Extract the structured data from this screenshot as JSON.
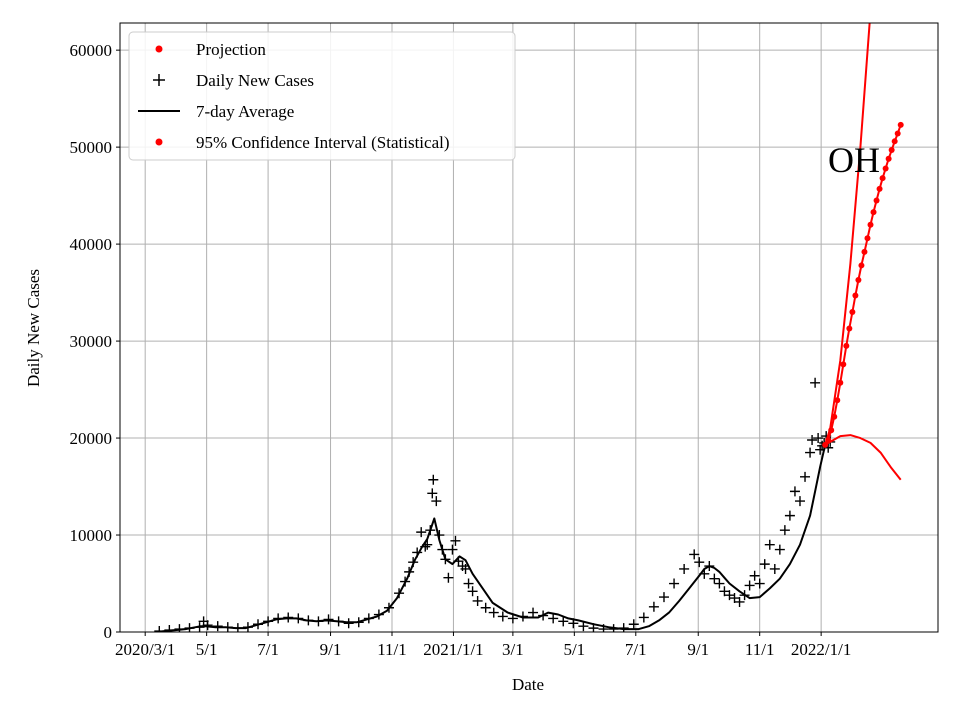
{
  "chart_data": {
    "type": "line",
    "title": "",
    "annotation": "OH",
    "xlabel": "Date",
    "ylabel": "Daily New Cases",
    "ylim": [
      0,
      62800
    ],
    "xlim": [
      -25,
      787
    ],
    "grid": true,
    "legend_position": "top-left",
    "x_unit": "days since 2020-03-01",
    "x_ticks": [
      {
        "x": 0,
        "label": "2020/3/1"
      },
      {
        "x": 61,
        "label": "5/1"
      },
      {
        "x": 122,
        "label": "7/1"
      },
      {
        "x": 184,
        "label": "9/1"
      },
      {
        "x": 245,
        "label": "11/1"
      },
      {
        "x": 306,
        "label": "2021/1/1"
      },
      {
        "x": 365,
        "label": "3/1"
      },
      {
        "x": 426,
        "label": "5/1"
      },
      {
        "x": 487,
        "label": "7/1"
      },
      {
        "x": 549,
        "label": "9/1"
      },
      {
        "x": 610,
        "label": "11/1"
      },
      {
        "x": 671,
        "label": "2022/1/1"
      }
    ],
    "y_ticks": [
      {
        "y": 0,
        "label": "0"
      },
      {
        "y": 10000,
        "label": "10000"
      },
      {
        "y": 20000,
        "label": "20000"
      },
      {
        "y": 30000,
        "label": "30000"
      },
      {
        "y": 40000,
        "label": "40000"
      },
      {
        "y": 50000,
        "label": "50000"
      },
      {
        "y": 60000,
        "label": "60000"
      }
    ],
    "legend": [
      {
        "label": "Projection",
        "marker": "dot",
        "color": "#ff0000"
      },
      {
        "label": "Daily New Cases",
        "marker": "plus",
        "color": "#000000"
      },
      {
        "label": "7-day Average",
        "marker": "line",
        "color": "#000000"
      },
      {
        "label": "95% Confidence Interval (Statistical)",
        "marker": "dot",
        "color": "#ff0000"
      }
    ],
    "series": [
      {
        "name": "7-day Average",
        "style": "line",
        "color": "#000000",
        "x": [
          13,
          20,
          30,
          40,
          50,
          55,
          60,
          70,
          80,
          90,
          100,
          110,
          120,
          130,
          140,
          150,
          160,
          170,
          180,
          190,
          200,
          210,
          220,
          230,
          240,
          250,
          260,
          268,
          275,
          280,
          283,
          287,
          292,
          298,
          305,
          312,
          318,
          325,
          335,
          345,
          360,
          375,
          390,
          400,
          410,
          420,
          430,
          445,
          460,
          475,
          490,
          500,
          510,
          520,
          530,
          540,
          550,
          555,
          560,
          565,
          570,
          575,
          580,
          590,
          600,
          610,
          620,
          630,
          640,
          650,
          660,
          665,
          670,
          675
        ],
        "y": [
          0,
          100,
          200,
          300,
          500,
          600,
          600,
          500,
          500,
          400,
          400,
          700,
          1000,
          1300,
          1400,
          1400,
          1200,
          1100,
          1200,
          1100,
          1000,
          1000,
          1300,
          1600,
          2200,
          3500,
          5500,
          7500,
          8800,
          9600,
          10500,
          11700,
          9500,
          7500,
          7000,
          7800,
          7400,
          6000,
          4500,
          3000,
          2000,
          1500,
          1500,
          2000,
          1800,
          1400,
          1200,
          800,
          500,
          300,
          300,
          600,
          1200,
          2000,
          3200,
          4500,
          5800,
          6500,
          6800,
          6600,
          6200,
          5600,
          5000,
          4200,
          3500,
          3600,
          4500,
          5500,
          7000,
          9000,
          12000,
          14500,
          17000,
          19300
        ]
      },
      {
        "name": "Daily New Cases",
        "style": "plus",
        "color": "#000000",
        "x": [
          14,
          24,
          34,
          44,
          54,
          58,
          62,
          72,
          82,
          92,
          102,
          112,
          122,
          132,
          142,
          152,
          162,
          172,
          182,
          192,
          202,
          212,
          222,
          232,
          242,
          252,
          258,
          262,
          266,
          270,
          274,
          278,
          280,
          283,
          285,
          286,
          289,
          292,
          295,
          298,
          301,
          305,
          308,
          311,
          315,
          318,
          321,
          325,
          330,
          338,
          346,
          355,
          365,
          375,
          385,
          395,
          405,
          415,
          425,
          435,
          445,
          455,
          465,
          475,
          485,
          495,
          505,
          515,
          525,
          535,
          545,
          550,
          555,
          560,
          565,
          570,
          575,
          580,
          585,
          590,
          595,
          600,
          605,
          610,
          615,
          620,
          625,
          630,
          635,
          640,
          645,
          650,
          655,
          660,
          662,
          665,
          668,
          670,
          672,
          674,
          676,
          678,
          680
        ],
        "y": [
          100,
          200,
          300,
          400,
          500,
          1100,
          700,
          600,
          500,
          400,
          500,
          800,
          1100,
          1400,
          1500,
          1400,
          1200,
          1100,
          1300,
          1100,
          900,
          1000,
          1400,
          1800,
          2500,
          4000,
          5200,
          6200,
          7200,
          8200,
          10300,
          8800,
          9000,
          10500,
          14300,
          15700,
          13500,
          10000,
          8500,
          7500,
          5600,
          8500,
          9400,
          7300,
          6800,
          6500,
          5000,
          4200,
          3200,
          2500,
          2000,
          1600,
          1400,
          1600,
          2000,
          1700,
          1400,
          1100,
          900,
          600,
          400,
          300,
          300,
          400,
          800,
          1500,
          2600,
          3600,
          5000,
          6500,
          8000,
          7200,
          6000,
          6800,
          5500,
          5000,
          4200,
          3800,
          3500,
          3100,
          3800,
          4800,
          5800,
          5000,
          7000,
          9000,
          6500,
          8500,
          10500,
          12000,
          14500,
          13500,
          16000,
          18500,
          19800,
          25700,
          20000,
          18800,
          19200,
          19500,
          20200,
          19000,
          19600
        ]
      },
      {
        "name": "Projection",
        "style": "line",
        "color": "#ff0000",
        "x": [
          675,
          680,
          690,
          700,
          710,
          720
        ],
        "y": [
          19300,
          21000,
          28000,
          38000,
          50000,
          64000
        ]
      },
      {
        "name": "Projection (lower)",
        "style": "line",
        "color": "#ff0000",
        "x": [
          675,
          680,
          690,
          700,
          710,
          720,
          730,
          740,
          750
        ],
        "y": [
          19300,
          19600,
          20200,
          20300,
          20000,
          19500,
          18500,
          17000,
          15700
        ]
      },
      {
        "name": "95% Confidence Interval (Statistical)",
        "style": "dots",
        "color": "#ff0000",
        "x": [
          675,
          678,
          681,
          684,
          687,
          690,
          693,
          696,
          699,
          702,
          705,
          708,
          711,
          714,
          717,
          720,
          723,
          726,
          729,
          732,
          735,
          738,
          741,
          744,
          747,
          750
        ],
        "y": [
          19300,
          19800,
          20800,
          22200,
          23900,
          25700,
          27600,
          29500,
          31300,
          33000,
          34700,
          36300,
          37800,
          39200,
          40600,
          42000,
          43300,
          44500,
          45700,
          46800,
          47800,
          48800,
          49700,
          50600,
          51400,
          52300
        ]
      }
    ]
  }
}
